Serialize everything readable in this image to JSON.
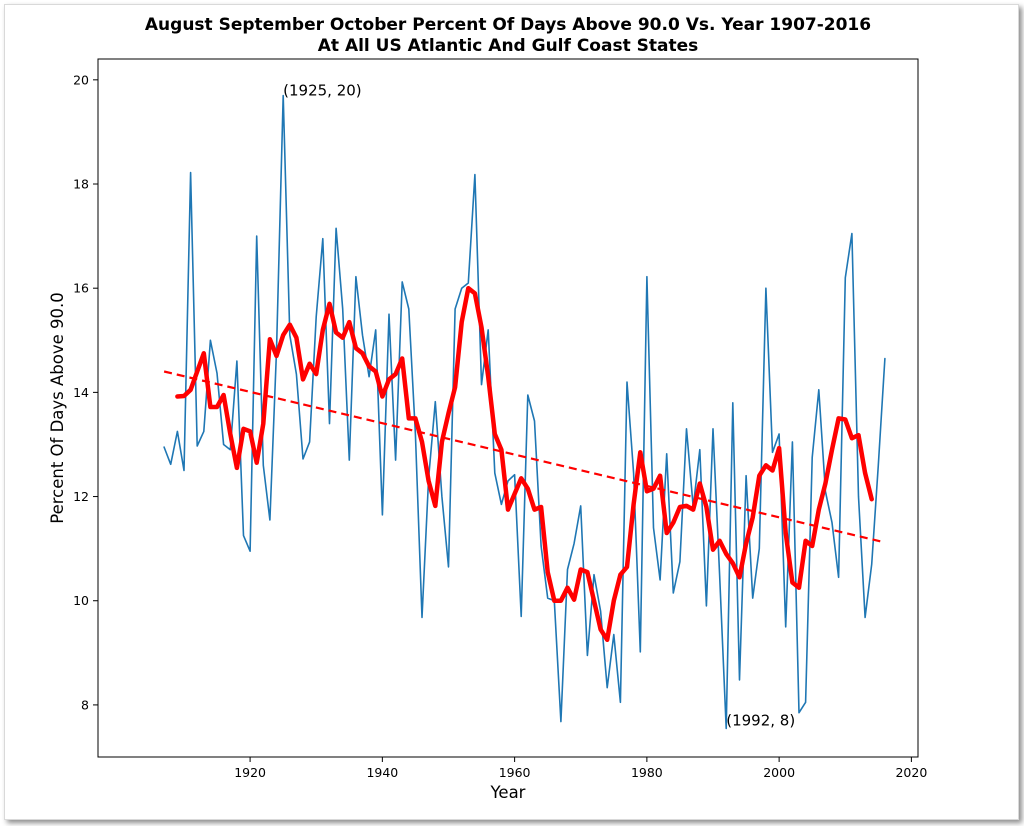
{
  "chart_data": {
    "type": "line",
    "title_line1": "August September October Percent Of Days Above 90.0 Vs. Year 1907-2016",
    "title_line2": "At All US Atlantic And Gulf Coast States",
    "xlabel": "Year",
    "ylabel": "Percent Of Days Above 90.0",
    "xlim": [
      1897,
      2021
    ],
    "ylim": [
      7.0,
      20.4
    ],
    "xticks": [
      1920,
      1940,
      1960,
      1980,
      2000,
      2020
    ],
    "yticks": [
      8,
      10,
      12,
      14,
      16,
      18,
      20
    ],
    "grid": false,
    "annotations": [
      {
        "x": 1925,
        "y": 19.7,
        "text": "(1925, 20)"
      },
      {
        "x": 1992,
        "y": 7.6,
        "text": "(1992, 8)"
      }
    ],
    "series": [
      {
        "style": "thin",
        "color": "#1f77b4",
        "x": [
          1907,
          1908,
          1909,
          1910,
          1911,
          1912,
          1913,
          1914,
          1915,
          1916,
          1917,
          1918,
          1919,
          1920,
          1921,
          1922,
          1923,
          1924,
          1925,
          1926,
          1927,
          1928,
          1929,
          1930,
          1931,
          1932,
          1933,
          1934,
          1935,
          1936,
          1937,
          1938,
          1939,
          1940,
          1941,
          1942,
          1943,
          1944,
          1945,
          1946,
          1947,
          1948,
          1949,
          1950,
          1951,
          1952,
          1953,
          1954,
          1955,
          1956,
          1957,
          1958,
          1959,
          1960,
          1961,
          1962,
          1963,
          1964,
          1965,
          1966,
          1967,
          1968,
          1969,
          1970,
          1971,
          1972,
          1973,
          1974,
          1975,
          1976,
          1977,
          1978,
          1979,
          1980,
          1981,
          1982,
          1983,
          1984,
          1985,
          1986,
          1987,
          1988,
          1989,
          1990,
          1991,
          1992,
          1993,
          1994,
          1995,
          1996,
          1997,
          1998,
          1999,
          2000,
          2001,
          2002,
          2003,
          2004,
          2005,
          2006,
          2007,
          2008,
          2009,
          2010,
          2011,
          2012,
          2013,
          2014,
          2015,
          2016
        ],
        "y": [
          12.95,
          12.62,
          13.25,
          12.5,
          18.22,
          12.97,
          13.25,
          15.0,
          14.37,
          13.0,
          12.9,
          14.6,
          11.25,
          10.95,
          17.0,
          12.6,
          11.55,
          14.8,
          19.7,
          15.1,
          14.35,
          12.72,
          13.05,
          15.45,
          16.95,
          13.4,
          17.15,
          15.6,
          12.7,
          16.22,
          15.1,
          14.3,
          15.2,
          11.65,
          15.5,
          12.7,
          16.12,
          15.6,
          13.2,
          9.68,
          12.35,
          13.82,
          12.0,
          10.65,
          15.6,
          16.0,
          16.1,
          18.18,
          14.15,
          15.2,
          12.45,
          11.85,
          12.3,
          12.42,
          9.7,
          13.95,
          13.45,
          11.05,
          10.05,
          10.0,
          7.68,
          10.6,
          11.1,
          11.82,
          8.95,
          10.5,
          9.8,
          8.33,
          9.35,
          8.05,
          14.2,
          12.45,
          9.02,
          16.22,
          11.4,
          10.4,
          12.82,
          10.15,
          10.75,
          13.3,
          11.8,
          12.9,
          9.9,
          13.3,
          10.5,
          7.55,
          13.8,
          8.48,
          12.4,
          10.05,
          11.0,
          16.0,
          12.85,
          13.2,
          9.5,
          13.05,
          7.85,
          8.05,
          12.75,
          14.05,
          12.1,
          11.5,
          10.45,
          16.2,
          17.05,
          12.0,
          9.68,
          10.7,
          12.6,
          14.65
        ]
      },
      {
        "style": "thick",
        "color": "#ff0000",
        "x": [
          1909,
          1910,
          1911,
          1912,
          1913,
          1914,
          1915,
          1916,
          1917,
          1918,
          1919,
          1920,
          1921,
          1922,
          1923,
          1924,
          1925,
          1926,
          1927,
          1928,
          1929,
          1930,
          1931,
          1932,
          1933,
          1934,
          1935,
          1936,
          1937,
          1938,
          1939,
          1940,
          1941,
          1942,
          1943,
          1944,
          1945,
          1946,
          1947,
          1948,
          1949,
          1950,
          1951,
          1952,
          1953,
          1954,
          1955,
          1956,
          1957,
          1958,
          1959,
          1960,
          1961,
          1962,
          1963,
          1964,
          1965,
          1966,
          1967,
          1968,
          1969,
          1970,
          1971,
          1972,
          1973,
          1974,
          1975,
          1976,
          1977,
          1978,
          1979,
          1980,
          1981,
          1982,
          1983,
          1984,
          1985,
          1986,
          1987,
          1988,
          1989,
          1990,
          1991,
          1992,
          1993,
          1994,
          1995,
          1996,
          1997,
          1998,
          1999,
          2000,
          2001,
          2002,
          2003,
          2004,
          2005,
          2006,
          2007,
          2008,
          2009,
          2010,
          2011,
          2012,
          2013,
          2014
        ],
        "y": [
          13.92,
          13.93,
          14.05,
          14.4,
          14.75,
          13.72,
          13.72,
          13.95,
          13.2,
          12.55,
          13.3,
          13.25,
          12.65,
          13.4,
          15.02,
          14.7,
          15.1,
          15.3,
          15.05,
          14.25,
          14.55,
          14.35,
          15.2,
          15.7,
          15.15,
          15.05,
          15.35,
          14.85,
          14.75,
          14.5,
          14.4,
          13.92,
          14.25,
          14.35,
          14.65,
          13.5,
          13.5,
          13.05,
          12.3,
          11.82,
          13.05,
          13.6,
          14.1,
          15.35,
          16.0,
          15.9,
          15.25,
          14.3,
          13.2,
          12.9,
          11.75,
          12.05,
          12.35,
          12.15,
          11.75,
          11.8,
          10.55,
          10.0,
          10.0,
          10.25,
          10.02,
          10.6,
          10.55,
          10.0,
          9.45,
          9.25,
          10.0,
          10.5,
          10.65,
          11.85,
          12.85,
          12.1,
          12.15,
          12.4,
          11.3,
          11.5,
          11.8,
          11.82,
          11.75,
          12.25,
          11.8,
          10.98,
          11.15,
          10.9,
          10.72,
          10.45,
          11.1,
          11.6,
          12.4,
          12.6,
          12.5,
          12.93,
          11.3,
          10.35,
          10.25,
          11.15,
          11.05,
          11.75,
          12.25,
          12.9,
          13.5,
          13.48,
          13.12,
          13.18,
          12.45,
          11.95
        ]
      },
      {
        "style": "dashed",
        "color": "#ff0000",
        "x": [
          1907,
          2016
        ],
        "y": [
          14.4,
          11.12
        ]
      }
    ]
  }
}
